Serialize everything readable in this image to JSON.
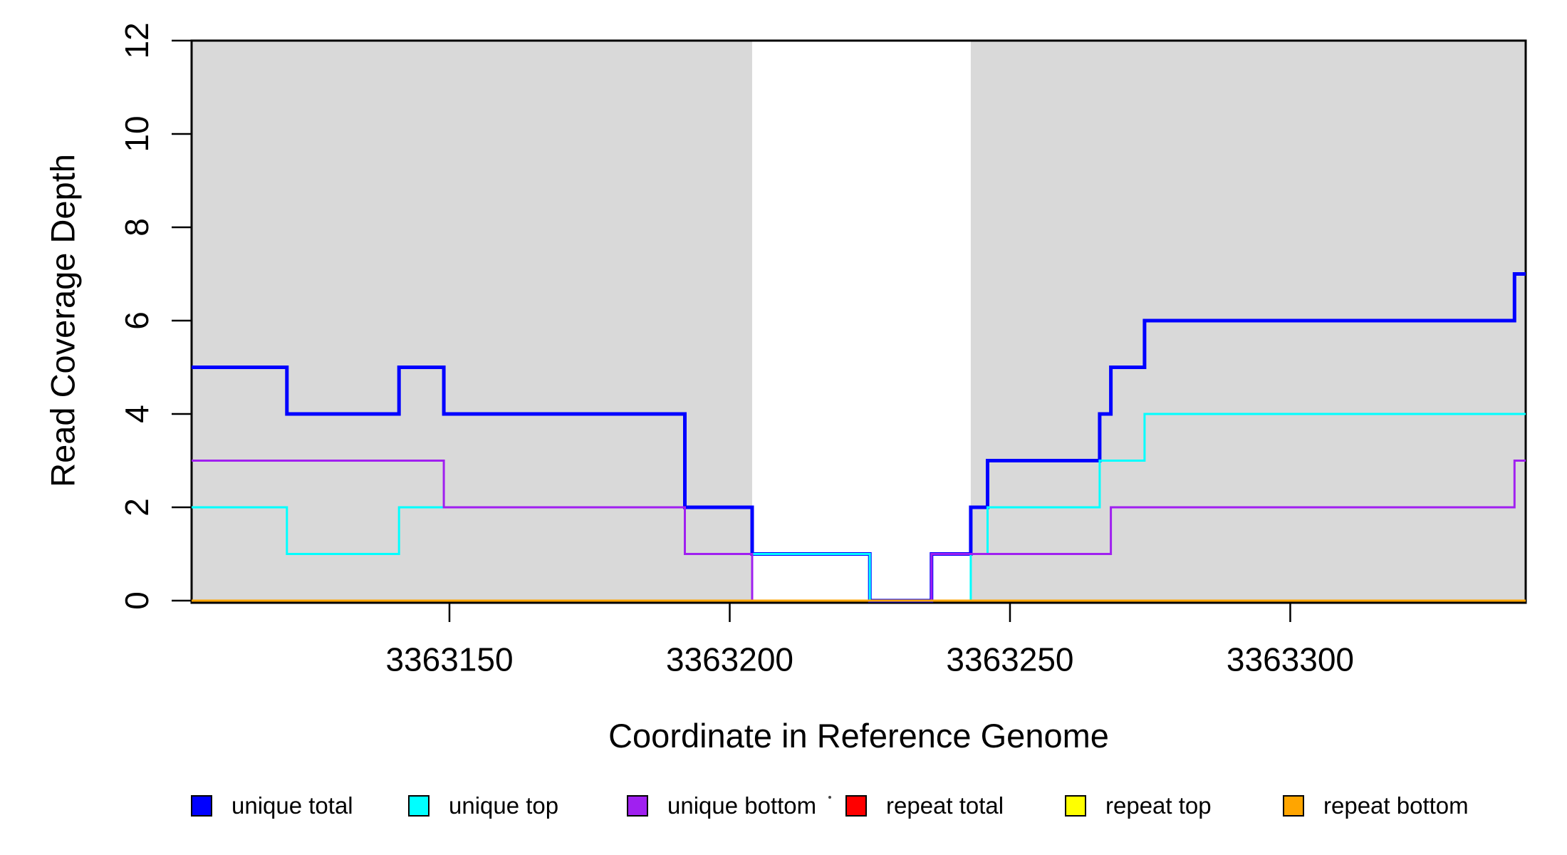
{
  "chart_data": {
    "type": "line",
    "subtype": "step",
    "title": "",
    "xlabel": "Coordinate in Reference Genome",
    "ylabel": "Read Coverage Depth",
    "xlim": [
      3363104,
      3363342
    ],
    "ylim": [
      0,
      12
    ],
    "grid": false,
    "frame": true,
    "frame_color": "#000000",
    "background_color": "#ffffff",
    "x_ticks": {
      "values": [
        3363150,
        3363200,
        3363250,
        3363300
      ],
      "labels": [
        "3363150",
        "3363200",
        "3363250",
        "3363300"
      ]
    },
    "y_ticks": {
      "values": [
        0,
        2,
        4,
        6,
        8,
        10,
        12
      ],
      "labels": [
        "0",
        "2",
        "4",
        "6",
        "8",
        "10",
        "12"
      ]
    },
    "shaded_regions": [
      {
        "name": "unique-region-left",
        "x0": 3363104,
        "x1": 3363204,
        "color": "#D9D9D9"
      },
      {
        "name": "unique-region-right",
        "x0": 3363243,
        "x1": 3363342,
        "color": "#D9D9D9"
      }
    ],
    "series": [
      {
        "name": "unique total",
        "color": "#0000FF",
        "line_width": 5,
        "steps": [
          [
            3363104,
            5
          ],
          [
            3363121,
            4
          ],
          [
            3363141,
            5
          ],
          [
            3363149,
            4
          ],
          [
            3363192,
            2
          ],
          [
            3363204,
            1
          ],
          [
            3363225,
            0
          ],
          [
            3363236,
            1
          ],
          [
            3363243,
            2
          ],
          [
            3363246,
            3
          ],
          [
            3363266,
            4
          ],
          [
            3363268,
            5
          ],
          [
            3363274,
            6
          ],
          [
            3363340,
            7
          ]
        ],
        "end_x": 3363342
      },
      {
        "name": "unique top",
        "color": "#00FFFF",
        "line_width": 3,
        "steps": [
          [
            3363104,
            2
          ],
          [
            3363121,
            1
          ],
          [
            3363141,
            2
          ],
          [
            3363192,
            1
          ],
          [
            3363225,
            0
          ],
          [
            3363243,
            1
          ],
          [
            3363246,
            2
          ],
          [
            3363266,
            3
          ],
          [
            3363274,
            4
          ]
        ],
        "end_x": 3363342
      },
      {
        "name": "unique bottom",
        "color": "#A020F0",
        "line_width": 3,
        "steps": [
          [
            3363104,
            3
          ],
          [
            3363149,
            2
          ],
          [
            3363192,
            1
          ],
          [
            3363204,
            0
          ],
          [
            3363236,
            1
          ],
          [
            3363268,
            2
          ],
          [
            3363340,
            3
          ]
        ],
        "end_x": 3363342
      },
      {
        "name": "repeat total",
        "color": "#FF0000",
        "line_width": 3,
        "steps": [
          [
            3363104,
            0
          ]
        ],
        "end_x": 3363342
      },
      {
        "name": "repeat top",
        "color": "#FFFF00",
        "line_width": 3,
        "steps": [
          [
            3363104,
            0
          ]
        ],
        "end_x": 3363342
      },
      {
        "name": "repeat bottom",
        "color": "#FFA500",
        "line_width": 3,
        "steps": [
          [
            3363104,
            0
          ]
        ],
        "end_x": 3363342
      }
    ],
    "legend": {
      "position": "bottom",
      "items": [
        {
          "label": "unique total",
          "color": "#0000FF"
        },
        {
          "label": "unique top",
          "color": "#00FFFF"
        },
        {
          "label": "unique bottom",
          "color": "#A020F0"
        },
        {
          "label": "repeat total",
          "color": "#FF0000"
        },
        {
          "label": "repeat top",
          "color": "#FFFF00"
        },
        {
          "label": "repeat bottom",
          "color": "#FFA500"
        }
      ]
    }
  }
}
